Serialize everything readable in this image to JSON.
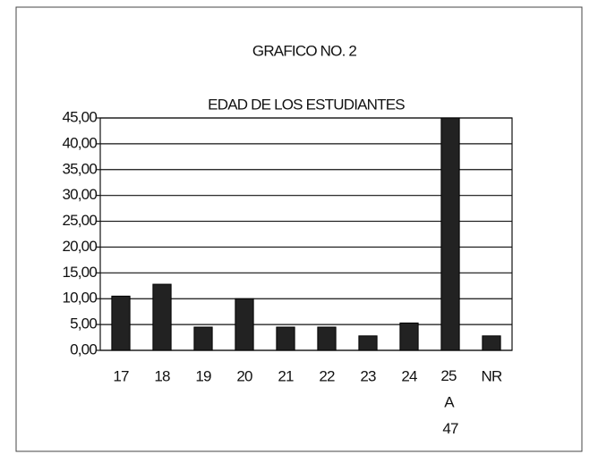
{
  "chart_data": {
    "type": "bar",
    "title": "GRAFICO NO. 2",
    "subtitle": "EDAD DE LOS ESTUDIANTES",
    "categories": [
      "17",
      "18",
      "19",
      "20",
      "21",
      "22",
      "23",
      "24",
      "25 A 47",
      "NR"
    ],
    "values": [
      10.5,
      12.8,
      4.5,
      10,
      4.5,
      4.5,
      2.8,
      5.3,
      45,
      2.8
    ],
    "color": "#222222",
    "ylim": [
      0,
      45
    ],
    "yticks": [
      {
        "value": 0,
        "label": "0,00"
      },
      {
        "value": 5,
        "label": "5,00"
      },
      {
        "value": 10,
        "label": "10,00"
      },
      {
        "value": 15,
        "label": "15,00"
      },
      {
        "value": 20,
        "label": "20,00"
      },
      {
        "value": 25,
        "label": "25,00"
      },
      {
        "value": 30,
        "label": "30,00"
      },
      {
        "value": 35,
        "label": "35,00"
      },
      {
        "value": 40,
        "label": "40,00"
      },
      {
        "value": 45,
        "label": "45,00"
      }
    ],
    "grid": true
  }
}
